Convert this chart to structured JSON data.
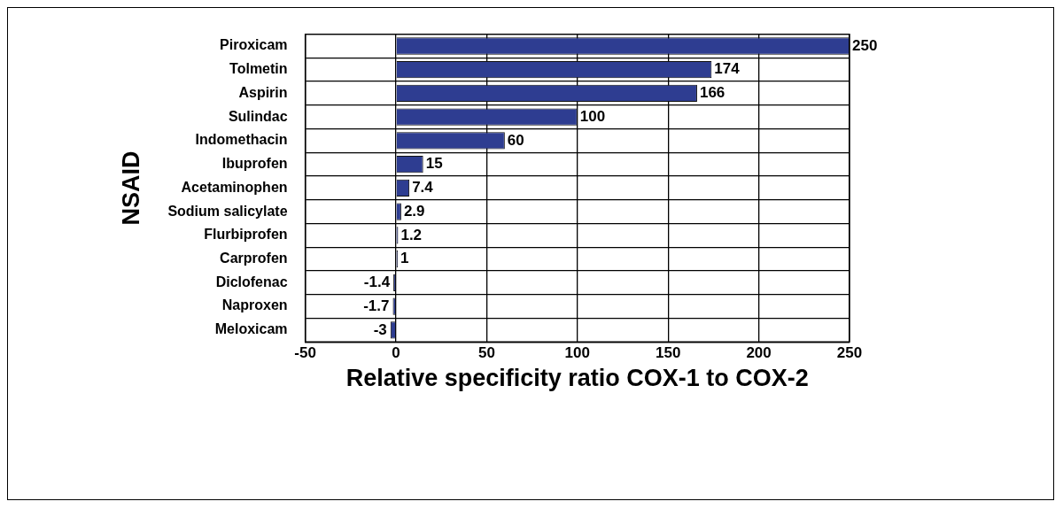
{
  "chart_data": {
    "type": "bar",
    "orientation": "horizontal",
    "xlabel": "Relative specificity ratio COX-1 to COX-2",
    "ylabel": "NSAID",
    "categories": [
      "Piroxicam",
      "Tolmetin",
      "Aspirin",
      "Sulindac",
      "Indomethacin",
      "Ibuprofen",
      "Acetaminophen",
      "Sodium salicylate",
      "Flurbiprofen",
      "Carprofen",
      "Diclofenac",
      "Naproxen",
      "Meloxicam"
    ],
    "values": [
      250,
      174,
      166,
      100,
      60,
      15,
      7.4,
      2.9,
      1.2,
      1,
      -1.4,
      -1.7,
      -3
    ],
    "color": "#2e3d91",
    "xlim": [
      -50,
      250
    ],
    "xticks": [
      -50,
      0,
      50,
      100,
      150,
      200,
      250
    ],
    "grid": true,
    "data_labels": true,
    "legend": false
  }
}
